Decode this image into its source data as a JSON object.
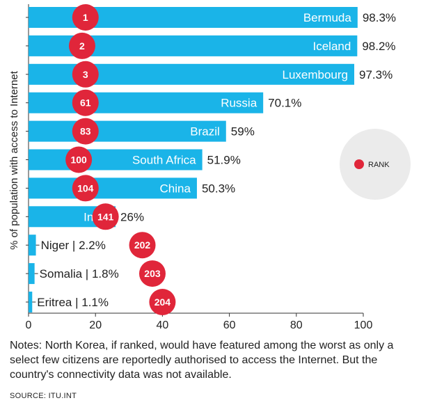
{
  "chart_data": {
    "type": "bar",
    "orientation": "horizontal",
    "ylabel": "% of population with access to Internet",
    "xlim": [
      0,
      100
    ],
    "x_ticks": [
      "0",
      "20",
      "40",
      "60",
      "80",
      "100"
    ],
    "categories": [
      "Bermuda",
      "Iceland",
      "Luxembourg",
      "Russia",
      "Brazil",
      "South Africa",
      "China",
      "India",
      "Niger",
      "Somalia",
      "Eritrea"
    ],
    "values": [
      98.3,
      98.2,
      97.3,
      70.1,
      59,
      51.9,
      50.3,
      26,
      2.2,
      1.8,
      1.1
    ],
    "value_labels": [
      "98.3%",
      "98.2%",
      "97.3%",
      "70.1%",
      "59%",
      "51.9%",
      "50.3%",
      "26%",
      "2.2%",
      "1.8%",
      "1.1%"
    ],
    "ranks": [
      "1",
      "2",
      "3",
      "61",
      "83",
      "100",
      "104",
      "141",
      "202",
      "203",
      "204"
    ],
    "legend": {
      "label": "RANK",
      "placement": "right"
    },
    "colors": {
      "bar": "#1ab4e8",
      "rank": "#e0263a",
      "legend_bg": "#ebebeb"
    }
  },
  "notes": "Notes: North Korea, if ranked, would have featured among the worst as only a select few citizens are reportedly authorised to access the Internet. But the country's connectivity data was not available.",
  "source": "SOURCE: ITU.INT"
}
